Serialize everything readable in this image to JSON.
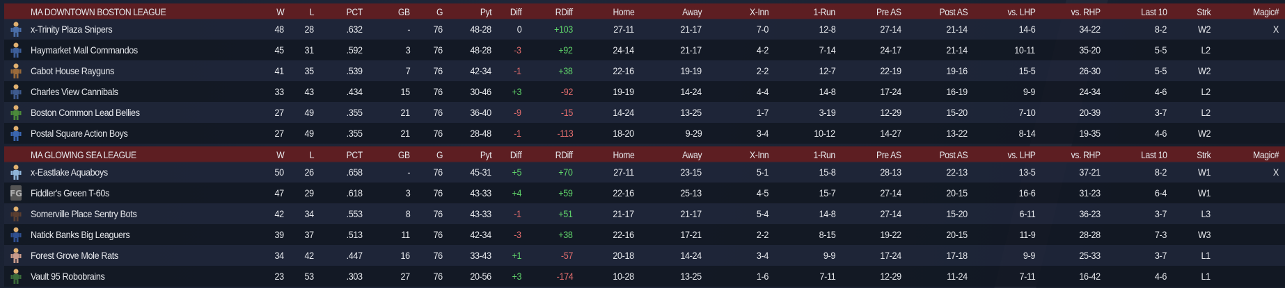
{
  "columns": [
    "W",
    "L",
    "PCT",
    "GB",
    "G",
    "Pyt",
    "Diff",
    "RDiff",
    "Home",
    "Away",
    "X-Inn",
    "1-Run",
    "Pre AS",
    "Post AS",
    "vs. LHP",
    "vs. RHP",
    "Last 10",
    "Strk",
    "Magic#"
  ],
  "colors": {
    "header_bg": "#5d1e22",
    "positive": "#5fd36a",
    "negative": "#e26d6d",
    "text": "#e6e8ec"
  },
  "leagues": [
    {
      "name": "MA DOWNTOWN BOSTON LEAGUE",
      "teams": [
        {
          "name": "x-Trinity Plaza Snipers",
          "logo": "sniper-mascot-icon",
          "logo_color": "#4a6ea8",
          "diff_sign": "zero",
          "rdiff_sign": "pos",
          "stats": [
            "48",
            "28",
            ".632",
            "-",
            "76",
            "48-28",
            "0",
            "+103",
            "27-11",
            "21-17",
            "7-0",
            "12-8",
            "27-14",
            "21-14",
            "14-6",
            "34-22",
            "8-2",
            "W2",
            "X"
          ]
        },
        {
          "name": "Haymarket Mall Commandos",
          "logo": "commando-mascot-icon",
          "logo_color": "#3d5f9a",
          "diff_sign": "neg",
          "rdiff_sign": "pos",
          "stats": [
            "45",
            "31",
            ".592",
            "3",
            "76",
            "48-28",
            "-3",
            "+92",
            "24-14",
            "21-17",
            "4-2",
            "7-14",
            "24-17",
            "21-14",
            "10-11",
            "35-20",
            "5-5",
            "L2",
            ""
          ]
        },
        {
          "name": "Cabot House Rayguns",
          "logo": "raygun-mascot-icon",
          "logo_color": "#9a6a3a",
          "diff_sign": "neg",
          "rdiff_sign": "pos",
          "stats": [
            "41",
            "35",
            ".539",
            "7",
            "76",
            "42-34",
            "-1",
            "+38",
            "22-16",
            "19-19",
            "2-2",
            "12-7",
            "22-19",
            "19-16",
            "15-5",
            "26-30",
            "5-5",
            "W2",
            ""
          ]
        },
        {
          "name": "Charles View Cannibals",
          "logo": "cannibal-mascot-icon",
          "logo_color": "#3e5a8e",
          "diff_sign": "pos",
          "rdiff_sign": "neg",
          "stats": [
            "33",
            "43",
            ".434",
            "15",
            "76",
            "30-46",
            "+3",
            "-92",
            "19-19",
            "14-24",
            "4-4",
            "14-8",
            "17-24",
            "16-19",
            "9-9",
            "24-34",
            "4-6",
            "L2",
            ""
          ]
        },
        {
          "name": "Boston Common Lead Bellies",
          "logo": "lead-belly-mascot-icon",
          "logo_color": "#4b8a3a",
          "diff_sign": "neg",
          "rdiff_sign": "neg",
          "stats": [
            "27",
            "49",
            ".355",
            "21",
            "76",
            "36-40",
            "-9",
            "-15",
            "14-24",
            "13-25",
            "1-7",
            "3-19",
            "12-29",
            "15-20",
            "7-10",
            "20-39",
            "3-7",
            "L2",
            ""
          ]
        },
        {
          "name": "Postal Square Action Boys",
          "logo": "action-boy-mascot-icon",
          "logo_color": "#3a66b0",
          "diff_sign": "neg",
          "rdiff_sign": "neg",
          "stats": [
            "27",
            "49",
            ".355",
            "21",
            "76",
            "28-48",
            "-1",
            "-113",
            "18-20",
            "9-29",
            "3-4",
            "10-12",
            "14-27",
            "13-22",
            "8-14",
            "19-35",
            "4-6",
            "W2",
            ""
          ]
        }
      ]
    },
    {
      "name": "MA GLOWING SEA LEAGUE",
      "teams": [
        {
          "name": "x-Eastlake Aquaboys",
          "logo": "aquaboy-mascot-icon",
          "logo_color": "#8fb4d8",
          "diff_sign": "pos",
          "rdiff_sign": "pos",
          "stats": [
            "50",
            "26",
            ".658",
            "-",
            "76",
            "45-31",
            "+5",
            "+70",
            "27-11",
            "23-15",
            "5-1",
            "15-8",
            "28-13",
            "22-13",
            "13-5",
            "37-21",
            "8-2",
            "W1",
            "X"
          ]
        },
        {
          "name": "Fiddler's Green T-60s",
          "logo": "fg-monogram-icon",
          "logo_color": "#b0b0b0",
          "diff_sign": "pos",
          "rdiff_sign": "pos",
          "stats": [
            "47",
            "29",
            ".618",
            "3",
            "76",
            "43-33",
            "+4",
            "+59",
            "22-16",
            "25-13",
            "4-5",
            "15-7",
            "27-14",
            "20-15",
            "16-6",
            "31-23",
            "6-4",
            "W1",
            ""
          ]
        },
        {
          "name": "Somerville Place Sentry Bots",
          "logo": "sentry-bot-mascot-icon",
          "logo_color": "#5a3e30",
          "diff_sign": "neg",
          "rdiff_sign": "pos",
          "stats": [
            "42",
            "34",
            ".553",
            "8",
            "76",
            "43-33",
            "-1",
            "+51",
            "21-17",
            "21-17",
            "5-4",
            "14-8",
            "27-14",
            "15-20",
            "6-11",
            "36-23",
            "3-7",
            "L3",
            ""
          ]
        },
        {
          "name": "Natick Banks Big Leaguers",
          "logo": "big-leaguer-mascot-icon",
          "logo_color": "#2f4f8f",
          "diff_sign": "neg",
          "rdiff_sign": "pos",
          "stats": [
            "39",
            "37",
            ".513",
            "11",
            "76",
            "42-34",
            "-3",
            "+38",
            "22-16",
            "17-21",
            "2-2",
            "8-15",
            "19-22",
            "20-15",
            "11-9",
            "28-28",
            "7-3",
            "W3",
            ""
          ]
        },
        {
          "name": "Forest Grove Mole Rats",
          "logo": "mole-rat-mascot-icon",
          "logo_color": "#c89a8a",
          "diff_sign": "pos",
          "rdiff_sign": "neg",
          "stats": [
            "34",
            "42",
            ".447",
            "16",
            "76",
            "33-43",
            "+1",
            "-57",
            "20-18",
            "14-24",
            "3-4",
            "9-9",
            "17-24",
            "17-18",
            "9-9",
            "25-33",
            "3-7",
            "L1",
            ""
          ]
        },
        {
          "name": "Vault 95 Robobrains",
          "logo": "robobrain-mascot-icon",
          "logo_color": "#3a6a3a",
          "diff_sign": "pos",
          "rdiff_sign": "neg",
          "stats": [
            "23",
            "53",
            ".303",
            "27",
            "76",
            "20-56",
            "+3",
            "-174",
            "10-28",
            "13-25",
            "1-6",
            "7-11",
            "12-29",
            "11-24",
            "7-11",
            "16-42",
            "4-6",
            "L1",
            ""
          ]
        }
      ]
    }
  ]
}
